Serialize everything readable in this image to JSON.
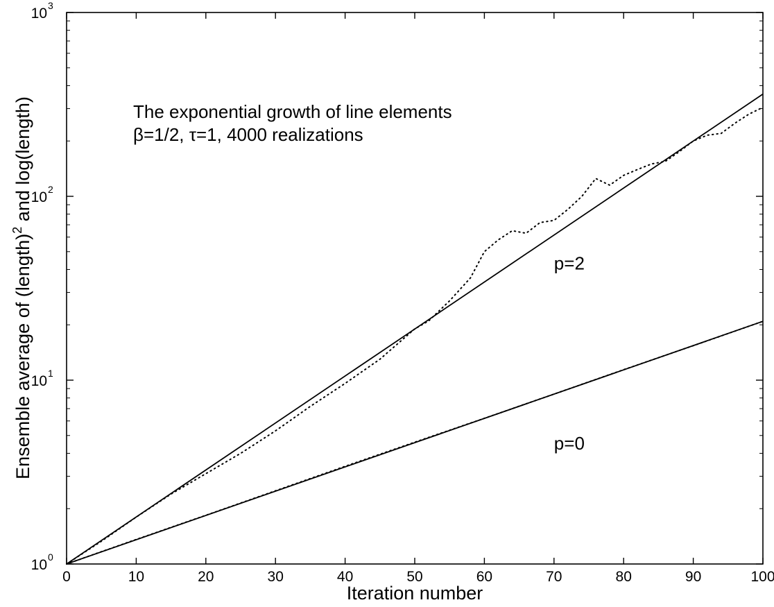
{
  "chart_data": {
    "type": "line",
    "yscale": "log",
    "xlim": [
      0,
      100
    ],
    "ylim": [
      1,
      1000
    ],
    "grid": false,
    "xlabel": "Iteration number",
    "ylabel_parts": {
      "base": "Ensemble average of (length)",
      "sup": "2",
      "tail": " and log(length)"
    },
    "xticks": [
      0,
      10,
      20,
      30,
      40,
      50,
      60,
      70,
      80,
      90,
      100
    ],
    "yticks": [
      {
        "value": 1,
        "base": "10",
        "exp": "0"
      },
      {
        "value": 10,
        "base": "10",
        "exp": "1"
      },
      {
        "value": 100,
        "base": "10",
        "exp": "2"
      },
      {
        "value": 1000,
        "base": "10",
        "exp": "3"
      }
    ],
    "annotations": {
      "title_line1": "The exponential growth  of line elements",
      "title_line2": "β=1/2, τ=1,  4000 realizations",
      "p2_label": "p=2",
      "p0_label": "p=0"
    },
    "label_positions": {
      "p2": {
        "x": 70,
        "y": 40
      },
      "p0": {
        "x": 70,
        "y": 4.2
      }
    },
    "series": [
      {
        "key": "p2_theory",
        "style": "solid",
        "x": [
          0,
          100
        ],
        "y": [
          1,
          360
        ]
      },
      {
        "key": "p2_simulation",
        "style": "dotted",
        "x": [
          0,
          5,
          10,
          15,
          20,
          25,
          30,
          35,
          40,
          45,
          50,
          52,
          55,
          58,
          60,
          62,
          64,
          66,
          68,
          70,
          72,
          74,
          76,
          78,
          80,
          82,
          84,
          86,
          88,
          90,
          92,
          94,
          96,
          98,
          100
        ],
        "y": [
          1,
          1.33,
          1.8,
          2.4,
          3.1,
          4.0,
          5.3,
          7.2,
          9.6,
          13.0,
          19.0,
          21.0,
          27.0,
          36.0,
          50.0,
          58.0,
          65.0,
          63.0,
          72.0,
          74.0,
          85.0,
          100.0,
          125.0,
          115.0,
          130.0,
          140.0,
          150.0,
          155.0,
          175.0,
          200.0,
          215.0,
          220.0,
          250.0,
          280.0,
          305.0
        ]
      },
      {
        "key": "p0_theory",
        "style": "solid",
        "x": [
          0,
          100
        ],
        "y": [
          1,
          20.9
        ]
      },
      {
        "key": "p0_simulation",
        "style": "dotted",
        "x": [
          0,
          10,
          20,
          30,
          40,
          50,
          60,
          70,
          80,
          90,
          100
        ],
        "y": [
          1,
          1.36,
          1.84,
          2.5,
          3.4,
          4.6,
          6.2,
          8.4,
          11.4,
          15.4,
          20.9
        ]
      }
    ]
  }
}
